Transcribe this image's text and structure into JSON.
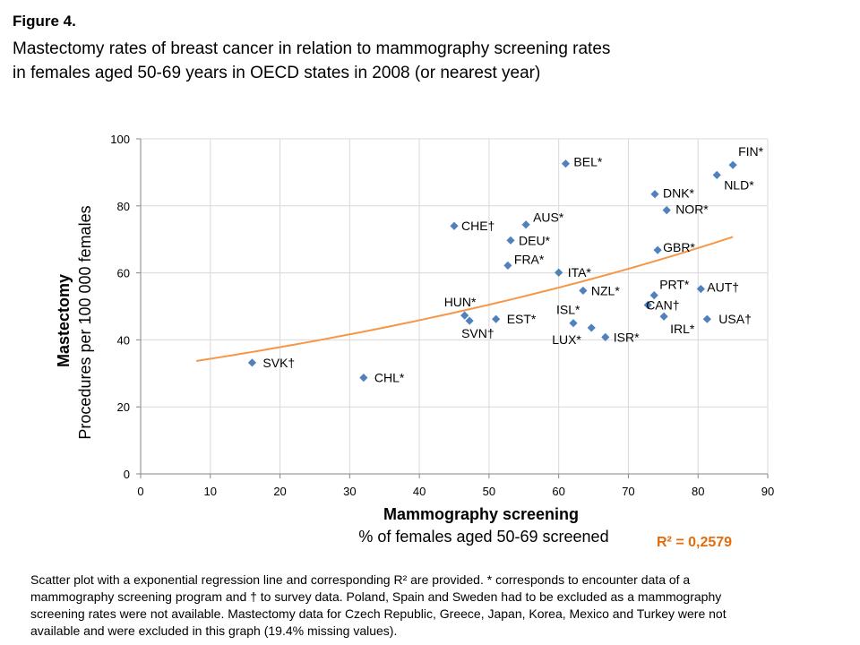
{
  "figure_label": "Figure 4.",
  "title_line1": "Mastectomy rates of breast cancer in relation to mammography screening rates",
  "title_line2": "in females aged 50-69 years in OECD states in 2008 (or nearest year)",
  "caption_lines": [
    "Scatter plot with a exponential regression line and corresponding R² are provided. * corresponds to encounter data of a",
    "mammography screening program and † to survey data. Poland, Spain and Sweden had to be excluded as a mammography",
    "screening rates were not available. Mastectomy data for Czech Republic, Greece, Japan, Korea, Mexico and Turkey were not",
    "available and were excluded in this graph (19.4% missing values)."
  ],
  "colors": {
    "marker": "#4f81bd",
    "trend": "#f79646",
    "r2_text": "#e46c0a",
    "grid": "#d9d9d9"
  },
  "chart_data": {
    "type": "scatter",
    "xlabel": "Mammography screening",
    "xlabel_sub": "% of females aged 50-69 screened",
    "ylabel": "Mastectomy",
    "ylabel_sub": "Procedures per 100 000 females",
    "xlim": [
      0,
      90
    ],
    "ylim": [
      0,
      100
    ],
    "xticks": [
      0,
      10,
      20,
      30,
      40,
      50,
      60,
      70,
      80,
      90
    ],
    "yticks": [
      0,
      20,
      40,
      60,
      80,
      100
    ],
    "grid": true,
    "r2_label": "R² = 0,2579",
    "trendline": {
      "type": "exponential",
      "a": 31.2,
      "b": 0.00963,
      "x_range": [
        8,
        85
      ]
    },
    "points": [
      {
        "label": "SVK†",
        "x": 16,
        "y": 33.2
      },
      {
        "label": "CHL*",
        "x": 32,
        "y": 28.7
      },
      {
        "label": "CHE†",
        "x": 45,
        "y": 74
      },
      {
        "label": "HUN*",
        "x": 46.5,
        "y": 47.3
      },
      {
        "label": "SVN†",
        "x": 47.2,
        "y": 45.7
      },
      {
        "label": "EST*",
        "x": 51,
        "y": 46.2
      },
      {
        "label": "FRA*",
        "x": 52.7,
        "y": 62.2
      },
      {
        "label": "DEU*",
        "x": 53.1,
        "y": 69.7
      },
      {
        "label": "AUS*",
        "x": 55.3,
        "y": 74.4
      },
      {
        "label": "ITA*",
        "x": 60,
        "y": 60.1
      },
      {
        "label": "BEL*",
        "x": 61,
        "y": 92.6
      },
      {
        "label": "ISL*",
        "x": 62.1,
        "y": 45
      },
      {
        "label": "NZL*",
        "x": 63.5,
        "y": 54.7
      },
      {
        "label": "LUX*",
        "x": 64.7,
        "y": 43.6
      },
      {
        "label": "ISR*",
        "x": 66.7,
        "y": 40.8
      },
      {
        "label": "CAN†",
        "x": 72.8,
        "y": 50.4
      },
      {
        "label": "PRT*",
        "x": 73.7,
        "y": 53.3
      },
      {
        "label": "DNK*",
        "x": 73.8,
        "y": 83.5
      },
      {
        "label": "GBR*",
        "x": 74.2,
        "y": 66.8
      },
      {
        "label": "IRL*",
        "x": 75.1,
        "y": 47
      },
      {
        "label": "NOR*",
        "x": 75.5,
        "y": 78.7
      },
      {
        "label": "AUT†",
        "x": 80.4,
        "y": 55.2
      },
      {
        "label": "USA†",
        "x": 81.3,
        "y": 46.2
      },
      {
        "label": "NLD*",
        "x": 82.7,
        "y": 89.2
      },
      {
        "label": "FIN*",
        "x": 85,
        "y": 92.2
      }
    ]
  }
}
